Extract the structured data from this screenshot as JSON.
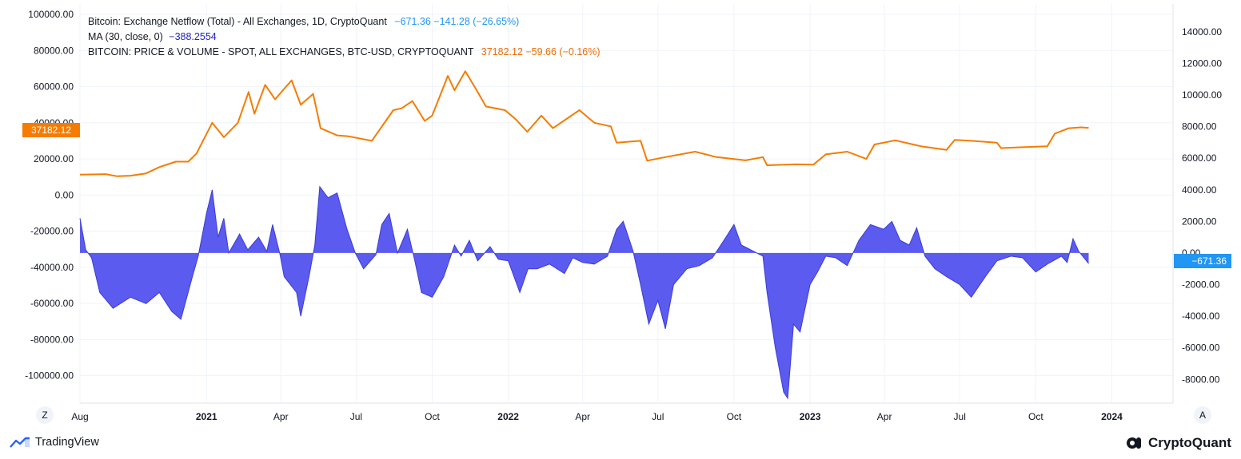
{
  "legend": {
    "line1_label": "Bitcoin: Exchange Netflow (Total) - All Exchanges, 1D, CryptoQuant",
    "line1_values": "−671.36  −141.28 (−26.65%)",
    "line2_label": "MA (30, close, 0)",
    "line2_value": "−388.2554",
    "line3_label": "BITCOIN: PRICE & VOLUME - SPOT, ALL EXCHANGES, BTC-USD, CRYPTOQUANT",
    "line3_values": "37182.12  −59.66 (−0.16%)"
  },
  "badges": {
    "price_last": "37182.12",
    "netflow_last": "−671.36"
  },
  "buttons": {
    "z_label": "Z",
    "a_label": "A"
  },
  "branding": {
    "tradingview": "TradingView",
    "cryptoquant": "CryptoQuant"
  },
  "colors": {
    "price_line": "#f57c00",
    "netflow_fill": "#5b5bf0",
    "netflow_stroke": "#3b3bd6",
    "grid": "#f0f3fa",
    "accent_blue": "#2196f3"
  },
  "chart_data": {
    "type": "line",
    "title": "",
    "left_axis": {
      "ticks": [
        "100000.00",
        "80000.00",
        "60000.00",
        "40000.00",
        "20000.00",
        "0.00",
        "-20000.00",
        "-40000.00",
        "-60000.00",
        "-80000.00",
        "-100000.00"
      ],
      "ylim": [
        -105000,
        100000
      ]
    },
    "right_axis": {
      "ticks": [
        "14000.00",
        "12000.00",
        "10000.00",
        "8000.00",
        "6000.00",
        "4000.00",
        "2000.00",
        "0.00",
        "-2000.00",
        "-4000.00",
        "-6000.00",
        "-8000.00"
      ],
      "ylim": [
        -9200,
        14700
      ]
    },
    "x_axis": {
      "range": [
        "2020-08-01",
        "2024-03-15"
      ],
      "ticks": [
        {
          "label": "Aug",
          "date": "2020-08-01",
          "year": false
        },
        {
          "label": "2021",
          "date": "2021-01-01",
          "year": true
        },
        {
          "label": "Apr",
          "date": "2021-04-01",
          "year": false
        },
        {
          "label": "Jul",
          "date": "2021-07-01",
          "year": false
        },
        {
          "label": "Oct",
          "date": "2021-10-01",
          "year": false
        },
        {
          "label": "2022",
          "date": "2022-01-01",
          "year": true
        },
        {
          "label": "Apr",
          "date": "2022-04-01",
          "year": false
        },
        {
          "label": "Jul",
          "date": "2022-07-01",
          "year": false
        },
        {
          "label": "Oct",
          "date": "2022-10-01",
          "year": false
        },
        {
          "label": "2023",
          "date": "2023-01-01",
          "year": true
        },
        {
          "label": "Apr",
          "date": "2023-04-01",
          "year": false
        },
        {
          "label": "Jul",
          "date": "2023-07-01",
          "year": false
        },
        {
          "label": "Oct",
          "date": "2023-10-01",
          "year": false
        },
        {
          "label": "2024",
          "date": "2024-01-01",
          "year": true
        }
      ]
    },
    "series": [
      {
        "name": "BITCOIN: PRICE & VOLUME - SPOT, ALL EXCHANGES, BTC-USD, CRYPTOQUANT",
        "axis": "left",
        "style": "line",
        "points": [
          [
            "2020-08-01",
            11300
          ],
          [
            "2020-09-01",
            11600
          ],
          [
            "2020-09-15",
            10400
          ],
          [
            "2020-10-01",
            10700
          ],
          [
            "2020-10-20",
            12000
          ],
          [
            "2020-11-05",
            15500
          ],
          [
            "2020-11-25",
            18500
          ],
          [
            "2020-12-10",
            18500
          ],
          [
            "2020-12-20",
            23000
          ],
          [
            "2021-01-08",
            40000
          ],
          [
            "2021-01-22",
            32000
          ],
          [
            "2021-02-08",
            40000
          ],
          [
            "2021-02-21",
            57000
          ],
          [
            "2021-02-28",
            45000
          ],
          [
            "2021-03-13",
            61000
          ],
          [
            "2021-03-25",
            53000
          ],
          [
            "2021-04-14",
            63500
          ],
          [
            "2021-04-25",
            50000
          ],
          [
            "2021-05-10",
            56000
          ],
          [
            "2021-05-19",
            37000
          ],
          [
            "2021-06-08",
            33000
          ],
          [
            "2021-06-22",
            32500
          ],
          [
            "2021-07-20",
            30000
          ],
          [
            "2021-08-15",
            47000
          ],
          [
            "2021-08-25",
            48000
          ],
          [
            "2021-09-07",
            52000
          ],
          [
            "2021-09-22",
            41000
          ],
          [
            "2021-10-01",
            44000
          ],
          [
            "2021-10-20",
            66000
          ],
          [
            "2021-10-28",
            58000
          ],
          [
            "2021-11-10",
            68500
          ],
          [
            "2021-11-25",
            57000
          ],
          [
            "2021-12-05",
            49000
          ],
          [
            "2021-12-28",
            47000
          ],
          [
            "2022-01-10",
            42000
          ],
          [
            "2022-01-24",
            35000
          ],
          [
            "2022-02-10",
            44000
          ],
          [
            "2022-02-24",
            37000
          ],
          [
            "2022-03-28",
            47000
          ],
          [
            "2022-04-15",
            40000
          ],
          [
            "2022-05-05",
            38000
          ],
          [
            "2022-05-12",
            29000
          ],
          [
            "2022-06-10",
            30000
          ],
          [
            "2022-06-18",
            19000
          ],
          [
            "2022-07-10",
            21000
          ],
          [
            "2022-08-15",
            24000
          ],
          [
            "2022-09-10",
            21000
          ],
          [
            "2022-10-15",
            19200
          ],
          [
            "2022-11-05",
            21000
          ],
          [
            "2022-11-10",
            16500
          ],
          [
            "2022-12-15",
            17000
          ],
          [
            "2023-01-05",
            16800
          ],
          [
            "2023-01-20",
            22500
          ],
          [
            "2023-02-15",
            24000
          ],
          [
            "2023-03-10",
            20000
          ],
          [
            "2023-03-20",
            28000
          ],
          [
            "2023-04-14",
            30300
          ],
          [
            "2023-05-15",
            27000
          ],
          [
            "2023-06-15",
            25000
          ],
          [
            "2023-06-25",
            30500
          ],
          [
            "2023-07-15",
            30000
          ],
          [
            "2023-08-15",
            29000
          ],
          [
            "2023-08-20",
            26000
          ],
          [
            "2023-09-15",
            26500
          ],
          [
            "2023-10-15",
            27000
          ],
          [
            "2023-10-24",
            34000
          ],
          [
            "2023-11-10",
            37000
          ],
          [
            "2023-11-25",
            37500
          ],
          [
            "2023-12-04",
            37182
          ]
        ]
      },
      {
        "name": "Bitcoin: Exchange Netflow (Total) - All Exchanges, 1D, CryptoQuant",
        "axis": "right",
        "style": "area",
        "points": [
          [
            "2020-08-01",
            2200
          ],
          [
            "2020-08-08",
            200
          ],
          [
            "2020-08-15",
            -300
          ],
          [
            "2020-08-25",
            -2500
          ],
          [
            "2020-09-10",
            -3500
          ],
          [
            "2020-10-01",
            -2800
          ],
          [
            "2020-10-20",
            -3200
          ],
          [
            "2020-11-05",
            -2500
          ],
          [
            "2020-11-20",
            -3700
          ],
          [
            "2020-12-01",
            -4200
          ],
          [
            "2020-12-15",
            -1500
          ],
          [
            "2020-12-22",
            -200
          ],
          [
            "2021-01-01",
            2500
          ],
          [
            "2021-01-08",
            4000
          ],
          [
            "2021-01-15",
            1000
          ],
          [
            "2021-01-22",
            2200
          ],
          [
            "2021-01-28",
            0
          ],
          [
            "2021-02-10",
            1200
          ],
          [
            "2021-02-20",
            200
          ],
          [
            "2021-03-05",
            1000
          ],
          [
            "2021-03-15",
            100
          ],
          [
            "2021-03-22",
            1800
          ],
          [
            "2021-03-31",
            -100
          ],
          [
            "2021-04-05",
            -1500
          ],
          [
            "2021-04-20",
            -2500
          ],
          [
            "2021-04-25",
            -4000
          ],
          [
            "2021-05-05",
            -1500
          ],
          [
            "2021-05-12",
            500
          ],
          [
            "2021-05-18",
            4200
          ],
          [
            "2021-05-28",
            3500
          ],
          [
            "2021-06-08",
            3800
          ],
          [
            "2021-06-20",
            1500
          ],
          [
            "2021-06-30",
            0
          ],
          [
            "2021-07-10",
            -1000
          ],
          [
            "2021-07-25",
            -100
          ],
          [
            "2021-08-01",
            1800
          ],
          [
            "2021-08-10",
            2500
          ],
          [
            "2021-08-20",
            0
          ],
          [
            "2021-09-01",
            1500
          ],
          [
            "2021-09-10",
            -500
          ],
          [
            "2021-09-18",
            -2500
          ],
          [
            "2021-10-01",
            -2800
          ],
          [
            "2021-10-15",
            -1500
          ],
          [
            "2021-10-28",
            500
          ],
          [
            "2021-11-05",
            -200
          ],
          [
            "2021-11-15",
            800
          ],
          [
            "2021-11-25",
            -500
          ],
          [
            "2021-12-10",
            400
          ],
          [
            "2021-12-20",
            -400
          ],
          [
            "2022-01-01",
            -500
          ],
          [
            "2022-01-15",
            -2500
          ],
          [
            "2022-01-25",
            -1000
          ],
          [
            "2022-02-05",
            -1000
          ],
          [
            "2022-02-20",
            -700
          ],
          [
            "2022-03-10",
            -1300
          ],
          [
            "2022-03-20",
            -300
          ],
          [
            "2022-04-01",
            -600
          ],
          [
            "2022-04-15",
            -700
          ],
          [
            "2022-05-01",
            -200
          ],
          [
            "2022-05-12",
            1500
          ],
          [
            "2022-05-20",
            2000
          ],
          [
            "2022-06-01",
            100
          ],
          [
            "2022-06-10",
            -2000
          ],
          [
            "2022-06-20",
            -4500
          ],
          [
            "2022-07-01",
            -3000
          ],
          [
            "2022-07-10",
            -4800
          ],
          [
            "2022-07-20",
            -2000
          ],
          [
            "2022-08-05",
            -1000
          ],
          [
            "2022-08-20",
            -800
          ],
          [
            "2022-09-05",
            -300
          ],
          [
            "2022-09-20",
            900
          ],
          [
            "2022-10-01",
            1800
          ],
          [
            "2022-10-10",
            500
          ],
          [
            "2022-10-25",
            100
          ],
          [
            "2022-11-05",
            -200
          ],
          [
            "2022-11-10",
            -2500
          ],
          [
            "2022-11-20",
            -6000
          ],
          [
            "2022-11-30",
            -8800
          ],
          [
            "2022-12-05",
            -9200
          ],
          [
            "2022-12-12",
            -4500
          ],
          [
            "2022-12-20",
            -5000
          ],
          [
            "2023-01-01",
            -2000
          ],
          [
            "2023-01-10",
            -1200
          ],
          [
            "2023-01-20",
            -200
          ],
          [
            "2023-02-01",
            -300
          ],
          [
            "2023-02-15",
            -800
          ],
          [
            "2023-03-01",
            800
          ],
          [
            "2023-03-15",
            1800
          ],
          [
            "2023-03-31",
            1500
          ],
          [
            "2023-04-10",
            2000
          ],
          [
            "2023-04-20",
            800
          ],
          [
            "2023-05-01",
            500
          ],
          [
            "2023-05-10",
            1600
          ],
          [
            "2023-05-20",
            -200
          ],
          [
            "2023-06-01",
            -1000
          ],
          [
            "2023-06-15",
            -1500
          ],
          [
            "2023-07-01",
            -2000
          ],
          [
            "2023-07-15",
            -2800
          ],
          [
            "2023-08-01",
            -1500
          ],
          [
            "2023-08-15",
            -500
          ],
          [
            "2023-09-01",
            -200
          ],
          [
            "2023-09-15",
            -300
          ],
          [
            "2023-10-01",
            -1200
          ],
          [
            "2023-10-15",
            -700
          ],
          [
            "2023-11-01",
            -200
          ],
          [
            "2023-11-08",
            -600
          ],
          [
            "2023-11-15",
            900
          ],
          [
            "2023-11-22",
            100
          ],
          [
            "2023-12-04",
            -671
          ]
        ]
      }
    ],
    "grid": true,
    "legend_placement": "top-left"
  }
}
